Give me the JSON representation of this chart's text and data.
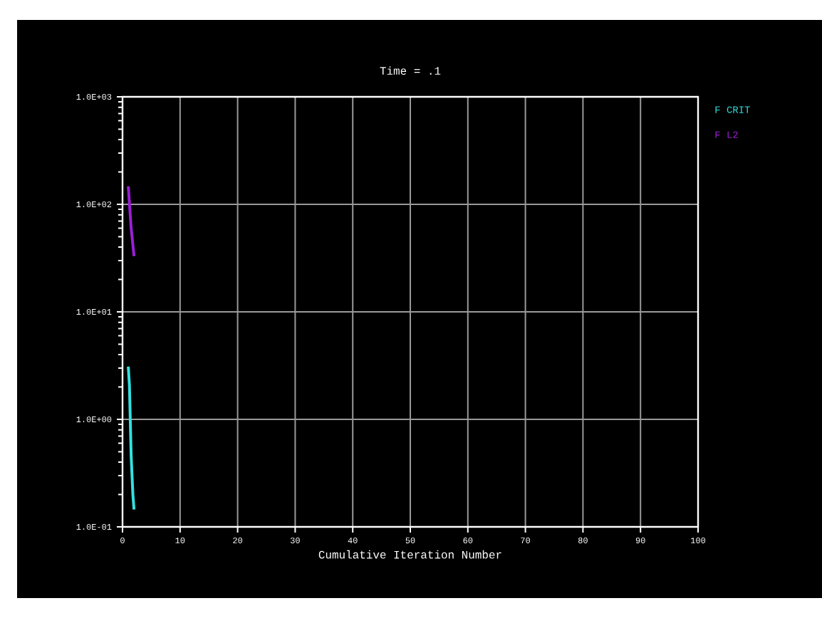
{
  "chart_data": {
    "type": "line",
    "title": "Time = .1",
    "xlabel": "Cumulative Iteration Number",
    "series": [
      {
        "name": "F CRIT",
        "color": "#33e0e0",
        "x": [
          1,
          1.2,
          1.5,
          1.8,
          2
        ],
        "values": [
          3.1,
          2.1,
          0.46,
          0.2,
          0.145
        ]
      },
      {
        "name": "F L2",
        "color": "#9a1fd6",
        "x": [
          1,
          1.5,
          2
        ],
        "values": [
          147,
          60,
          33
        ]
      }
    ],
    "xlim": [
      0,
      100
    ],
    "xticks": [
      0,
      10,
      20,
      30,
      40,
      50,
      60,
      70,
      80,
      90,
      100
    ],
    "ylim": [
      0.1,
      1000
    ],
    "yticks": [
      {
        "value": 0.1,
        "label": "1.0E-01"
      },
      {
        "value": 1,
        "label": "1.0E+00"
      },
      {
        "value": 10,
        "label": "1.0E+01"
      },
      {
        "value": 100,
        "label": "1.0E+02"
      },
      {
        "value": 1000,
        "label": "1.0E+03"
      }
    ],
    "log": "y",
    "grid": true,
    "legend": "top right",
    "marker": "none",
    "line_style": "solid"
  }
}
